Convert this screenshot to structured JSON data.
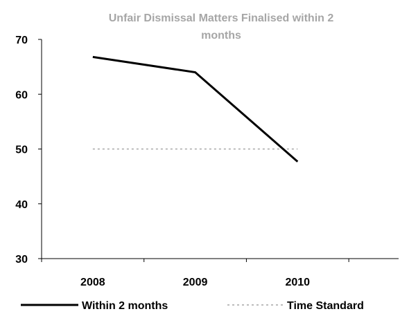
{
  "chart_data": {
    "type": "line",
    "title_lines": [
      "Unfair Dismissal Matters Finalised within 2",
      "months"
    ],
    "categories": [
      "2008",
      "2009",
      "2010"
    ],
    "ylim": [
      30,
      70
    ],
    "yticks": [
      30,
      40,
      50,
      60,
      70
    ],
    "grid": false,
    "legend_position": "bottom",
    "series": [
      {
        "name": "Within 2 months",
        "values": [
          66.8,
          64.0,
          47.7
        ],
        "color": "#000000",
        "style": "solid"
      },
      {
        "name": "Time Standard",
        "values": [
          50,
          50,
          50
        ],
        "color": "#a6a6a6",
        "style": "dashed"
      }
    ]
  }
}
